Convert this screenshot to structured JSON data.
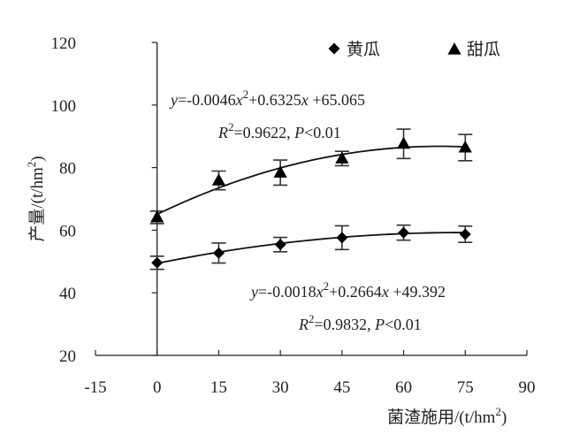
{
  "chart_data": {
    "type": "scatter",
    "title": "",
    "xlabel": "菌渣施用/(t/hm²)",
    "ylabel": "产量/(t/hm²)",
    "xlim": [
      -15,
      90
    ],
    "ylim": [
      20,
      120
    ],
    "xticks": [
      -15,
      0,
      15,
      30,
      45,
      60,
      75,
      90
    ],
    "yticks": [
      20,
      40,
      60,
      80,
      100,
      120
    ],
    "grid": false,
    "legend_position": "top-right",
    "series": [
      {
        "name": "黄瓜",
        "marker": "diamond",
        "x": [
          0,
          15,
          30,
          45,
          60,
          75
        ],
        "y": [
          49.6,
          52.7,
          55.4,
          57.6,
          59.2,
          58.7
        ],
        "error": [
          2.1,
          3.2,
          2.3,
          3.8,
          2.4,
          2.6
        ],
        "fit": {
          "a": -0.0018,
          "b": 0.2664,
          "c": 49.392
        },
        "equation": {
          "parts": [
            {
              "t": "y",
              "i": true
            },
            {
              "t": "=-0.0018"
            },
            {
              "t": "x",
              "i": true
            },
            {
              "t": "2",
              "sup": true
            },
            {
              "t": "+0.2664"
            },
            {
              "t": "x",
              "i": true
            },
            {
              "t": " +49.392"
            }
          ],
          "r2_parts": [
            {
              "t": "R",
              "i": true
            },
            {
              "t": "2",
              "sup": true
            },
            {
              "t": "=0.9832, "
            },
            {
              "t": "P",
              "i": true
            },
            {
              "t": "<0.01"
            }
          ]
        }
      },
      {
        "name": "甜瓜",
        "marker": "triangle",
        "x": [
          0,
          15,
          30,
          45,
          60,
          75
        ],
        "y": [
          64.1,
          75.9,
          78.4,
          82.9,
          87.6,
          86.4
        ],
        "error": [
          2.0,
          3.0,
          4.0,
          2.3,
          4.7,
          4.2
        ],
        "fit": {
          "a": -0.0046,
          "b": 0.6325,
          "c": 65.065
        },
        "equation": {
          "parts": [
            {
              "t": "y",
              "i": true
            },
            {
              "t": "=-0.0046"
            },
            {
              "t": "x",
              "i": true
            },
            {
              "t": "2",
              "sup": true
            },
            {
              "t": "+0.6325"
            },
            {
              "t": "x",
              "i": true
            },
            {
              "t": " +65.065"
            }
          ],
          "r2_parts": [
            {
              "t": "R",
              "i": true
            },
            {
              "t": "2",
              "sup": true
            },
            {
              "t": "=0.9622, "
            },
            {
              "t": "P",
              "i": true
            },
            {
              "t": "<0.01"
            }
          ]
        }
      }
    ]
  }
}
